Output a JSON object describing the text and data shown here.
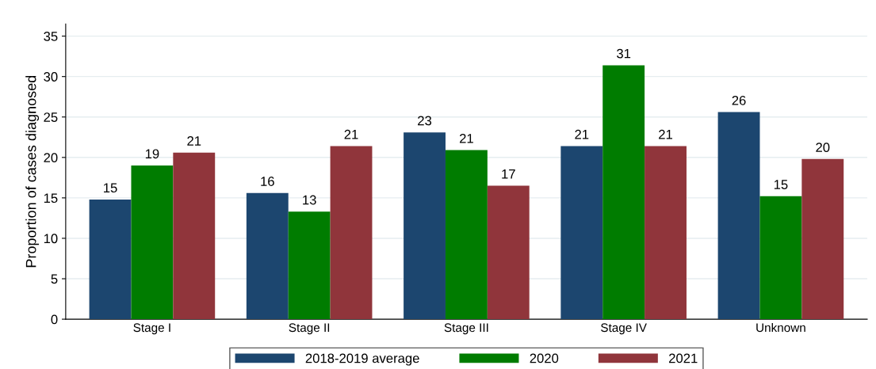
{
  "chart_data": {
    "type": "bar",
    "ylabel": "Proportion of cases diagnosed",
    "categories": [
      "Stage I",
      "Stage II",
      "Stage III",
      "Stage IV",
      "Unknown"
    ],
    "series": [
      {
        "name": "2018-2019 average",
        "color": "#1c466f",
        "values": [
          14.8,
          15.6,
          23.1,
          21.4,
          25.6
        ],
        "value_labels": [
          "15",
          "16",
          "23",
          "21",
          "26"
        ]
      },
      {
        "name": "2020",
        "color": "#007c00",
        "values": [
          19.0,
          13.3,
          20.9,
          31.4,
          15.2
        ],
        "value_labels": [
          "19",
          "13",
          "21",
          "31",
          "15"
        ]
      },
      {
        "name": "2021",
        "color": "#90353b",
        "values": [
          20.6,
          21.4,
          16.5,
          21.4,
          19.8
        ],
        "value_labels": [
          "21",
          "21",
          "17",
          "21",
          "20"
        ]
      }
    ],
    "ylim": [
      0,
      36.5
    ],
    "yticks": [
      0,
      5,
      10,
      15,
      20,
      25,
      30,
      35
    ],
    "grid": "y",
    "legend": "bottom"
  }
}
